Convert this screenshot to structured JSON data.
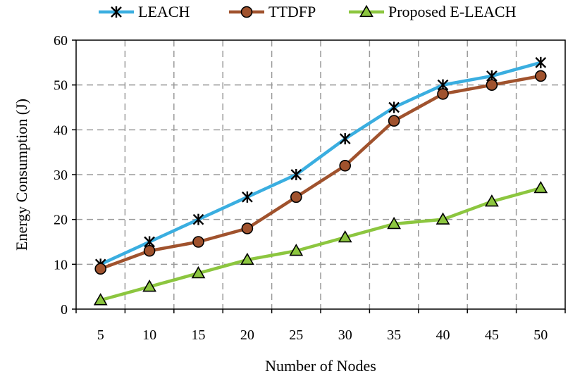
{
  "chart_data": {
    "type": "line",
    "title": "",
    "xlabel": "Number of Nodes",
    "ylabel": "Energy Consumption (J)",
    "categories": [
      "5",
      "10",
      "15",
      "20",
      "25",
      "30",
      "35",
      "40",
      "45",
      "50"
    ],
    "ylim": [
      0,
      60
    ],
    "yticks": [
      "0",
      "10",
      "20",
      "30",
      "40",
      "50",
      "60"
    ],
    "grid": true,
    "legend_position": "top",
    "series": [
      {
        "name": "LEACH",
        "color": "#3aaee0",
        "marker": "star-cross",
        "values": [
          10,
          15,
          20,
          25,
          30,
          38,
          45,
          50,
          52,
          55
        ]
      },
      {
        "name": "TTDFP",
        "color": "#a0522d",
        "marker": "circle",
        "values": [
          9,
          13,
          15,
          18,
          25,
          32,
          42,
          48,
          50,
          52
        ]
      },
      {
        "name": "Proposed E-LEACH",
        "color": "#8cc63f",
        "marker": "triangle",
        "values": [
          2,
          5,
          8,
          11,
          13,
          16,
          19,
          20,
          24,
          27
        ]
      }
    ]
  }
}
